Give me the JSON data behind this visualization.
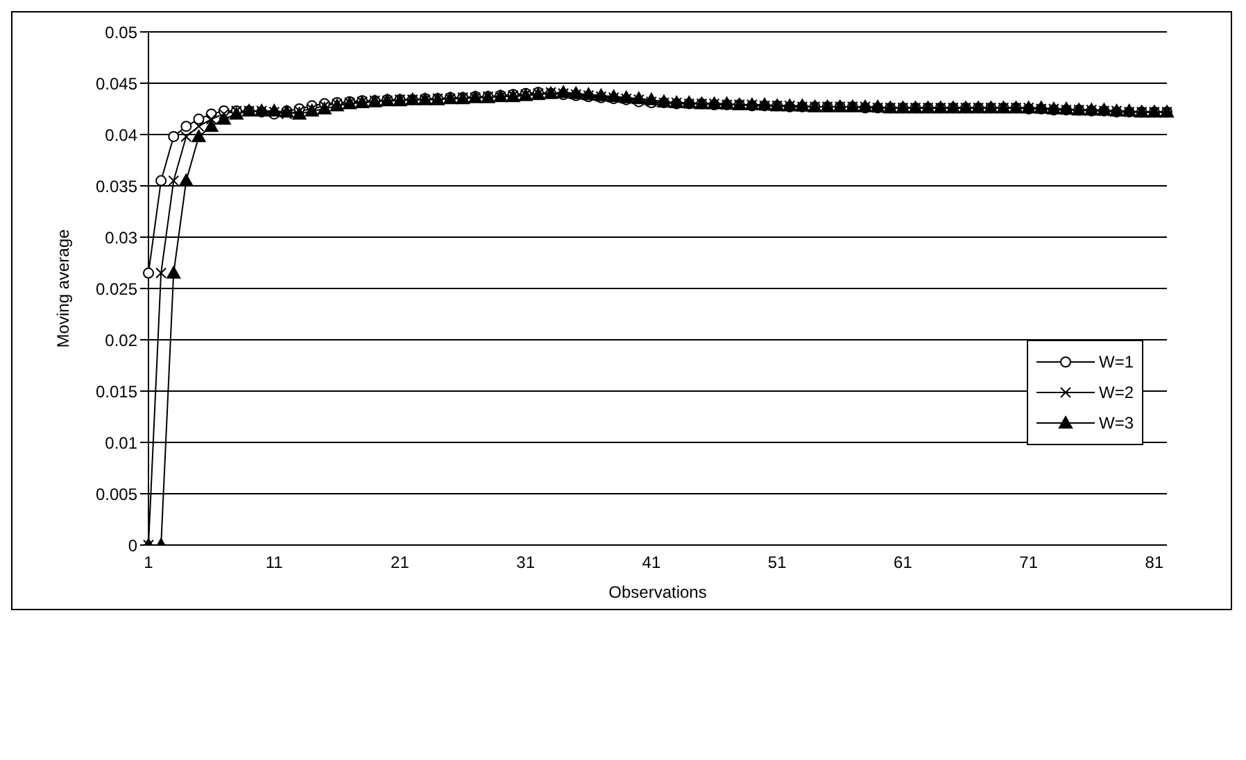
{
  "chart_data": {
    "type": "line",
    "xlabel": "Observations",
    "ylabel": "Moving average",
    "categories": [
      "1",
      null,
      null,
      null,
      null,
      null,
      null,
      null,
      null,
      null,
      "11",
      null,
      null,
      null,
      null,
      null,
      null,
      null,
      null,
      null,
      "21",
      null,
      null,
      null,
      null,
      null,
      null,
      null,
      null,
      null,
      "31",
      null,
      null,
      null,
      null,
      null,
      null,
      null,
      null,
      null,
      "41",
      null,
      null,
      null,
      null,
      null,
      null,
      null,
      null,
      null,
      "51",
      null,
      null,
      null,
      null,
      null,
      null,
      null,
      null,
      null,
      "61",
      null,
      null,
      null,
      null,
      null,
      null,
      null,
      null,
      null,
      "71",
      null,
      null,
      null,
      null,
      null,
      null,
      null,
      null,
      null,
      "81",
      null
    ],
    "ylim": [
      0,
      0.05
    ],
    "yticks": [
      0,
      0.005,
      0.01,
      0.015,
      0.02,
      0.025,
      0.03,
      0.035,
      0.04,
      0.045,
      0.05
    ],
    "grid": "y",
    "legend": "right",
    "line_style": "solid",
    "series": [
      {
        "name": "W=1",
        "color": "#000000",
        "marker": "circle",
        "values": [
          0.0265,
          0.0355,
          0.0398,
          0.0408,
          0.0415,
          0.042,
          0.0423,
          0.0423,
          0.0423,
          0.0422,
          0.042,
          0.0423,
          0.0425,
          0.0428,
          0.043,
          0.0431,
          0.0432,
          0.0433,
          0.0433,
          0.0434,
          0.0434,
          0.0434,
          0.0435,
          0.0435,
          0.0436,
          0.0436,
          0.0437,
          0.0437,
          0.0438,
          0.0439,
          0.044,
          0.0441,
          0.044,
          0.0439,
          0.0438,
          0.0437,
          0.0436,
          0.0435,
          0.0434,
          0.0432,
          0.0431,
          0.0431,
          0.043,
          0.043,
          0.043,
          0.0429,
          0.0429,
          0.0429,
          0.0428,
          0.0428,
          0.0428,
          0.0427,
          0.0427,
          0.0427,
          0.0427,
          0.0427,
          0.0427,
          0.0426,
          0.0426,
          0.0426,
          0.0426,
          0.0426,
          0.0426,
          0.0426,
          0.0426,
          0.0426,
          0.0426,
          0.0426,
          0.0426,
          0.0426,
          0.0425,
          0.0425,
          0.0424,
          0.0424,
          0.0424,
          0.0423,
          0.0423,
          0.0422,
          0.0422,
          0.0422,
          0.0422,
          0.0422
        ]
      },
      {
        "name": "W=2",
        "color": "#000000",
        "marker": "cross",
        "values": [
          0,
          0.0265,
          0.0355,
          0.0398,
          0.0408,
          0.0415,
          0.042,
          0.0423,
          0.0423,
          0.0423,
          0.0422,
          0.042,
          0.0423,
          0.0425,
          0.0428,
          0.043,
          0.0431,
          0.0432,
          0.0433,
          0.0433,
          0.0434,
          0.0434,
          0.0434,
          0.0435,
          0.0435,
          0.0436,
          0.0436,
          0.0437,
          0.0437,
          0.0438,
          0.0439,
          0.044,
          0.0441,
          0.044,
          0.0439,
          0.0438,
          0.0437,
          0.0436,
          0.0435,
          0.0434,
          0.0432,
          0.0431,
          0.0431,
          0.043,
          0.043,
          0.043,
          0.0429,
          0.0429,
          0.0429,
          0.0428,
          0.0428,
          0.0428,
          0.0427,
          0.0427,
          0.0427,
          0.0427,
          0.0427,
          0.0427,
          0.0426,
          0.0426,
          0.0426,
          0.0426,
          0.0426,
          0.0426,
          0.0426,
          0.0426,
          0.0426,
          0.0426,
          0.0426,
          0.0426,
          0.0426,
          0.0425,
          0.0425,
          0.0424,
          0.0424,
          0.0424,
          0.0423,
          0.0423,
          0.0422,
          0.0422,
          0.0422,
          0.0422
        ]
      },
      {
        "name": "W=3",
        "color": "#000000",
        "marker": "triangle",
        "values": [
          0,
          0,
          0.0265,
          0.0355,
          0.0398,
          0.0408,
          0.0415,
          0.042,
          0.0423,
          0.0423,
          0.0423,
          0.0422,
          0.042,
          0.0423,
          0.0425,
          0.0428,
          0.043,
          0.0431,
          0.0432,
          0.0433,
          0.0433,
          0.0434,
          0.0434,
          0.0434,
          0.0435,
          0.0435,
          0.0436,
          0.0436,
          0.0437,
          0.0437,
          0.0438,
          0.0439,
          0.044,
          0.0441,
          0.044,
          0.0439,
          0.0438,
          0.0437,
          0.0436,
          0.0435,
          0.0434,
          0.0432,
          0.0431,
          0.0431,
          0.043,
          0.043,
          0.043,
          0.0429,
          0.0429,
          0.0429,
          0.0428,
          0.0428,
          0.0428,
          0.0427,
          0.0427,
          0.0427,
          0.0427,
          0.0427,
          0.0427,
          0.0426,
          0.0426,
          0.0426,
          0.0426,
          0.0426,
          0.0426,
          0.0426,
          0.0426,
          0.0426,
          0.0426,
          0.0426,
          0.0426,
          0.0426,
          0.0425,
          0.0425,
          0.0424,
          0.0424,
          0.0424,
          0.0423,
          0.0423,
          0.0422,
          0.0422,
          0.0422
        ]
      }
    ]
  }
}
